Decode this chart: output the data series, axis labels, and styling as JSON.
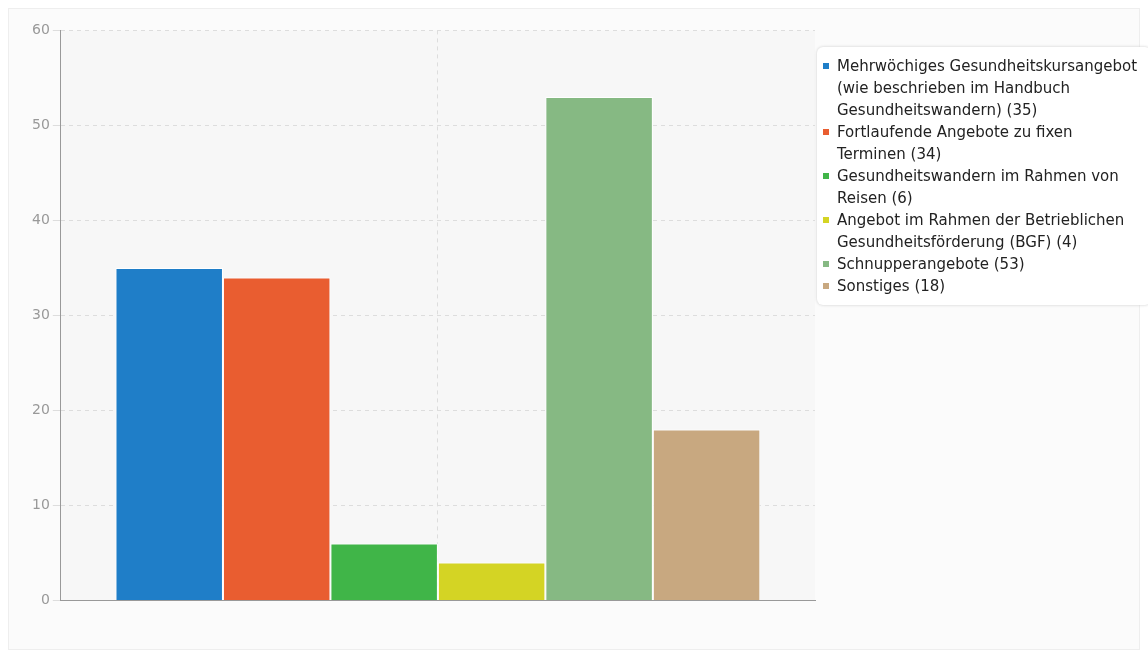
{
  "chart_data": {
    "type": "bar",
    "categories": [
      null
    ],
    "series": [
      {
        "name": "Mehrwöchiges Gesundheitskursangebot (wie beschrieben im Handbuch Gesundheitswandern) (35)",
        "color": "#1f7ec8",
        "values": [
          35
        ]
      },
      {
        "name": "Fortlaufende Angebote zu fixen Terminen (34)",
        "color": "#e95d30",
        "values": [
          34
        ]
      },
      {
        "name": "Gesundheitswandern im Rahmen von Reisen (6)",
        "color": "#40b548",
        "values": [
          6
        ]
      },
      {
        "name": "Angebot im Rahmen der Betrieblichen Gesundheitsförderung (BGF) (4)",
        "color": "#d4d424",
        "values": [
          4
        ]
      },
      {
        "name": "Schnupperangebote (53)",
        "color": "#86b983",
        "values": [
          53
        ]
      },
      {
        "name": "Sonstiges (18)",
        "color": "#c8a880",
        "values": [
          18
        ]
      }
    ],
    "ylim": [
      0,
      60
    ],
    "yticks": [
      0,
      10,
      20,
      30,
      40,
      50,
      60
    ],
    "grid": true,
    "legend": "right"
  }
}
